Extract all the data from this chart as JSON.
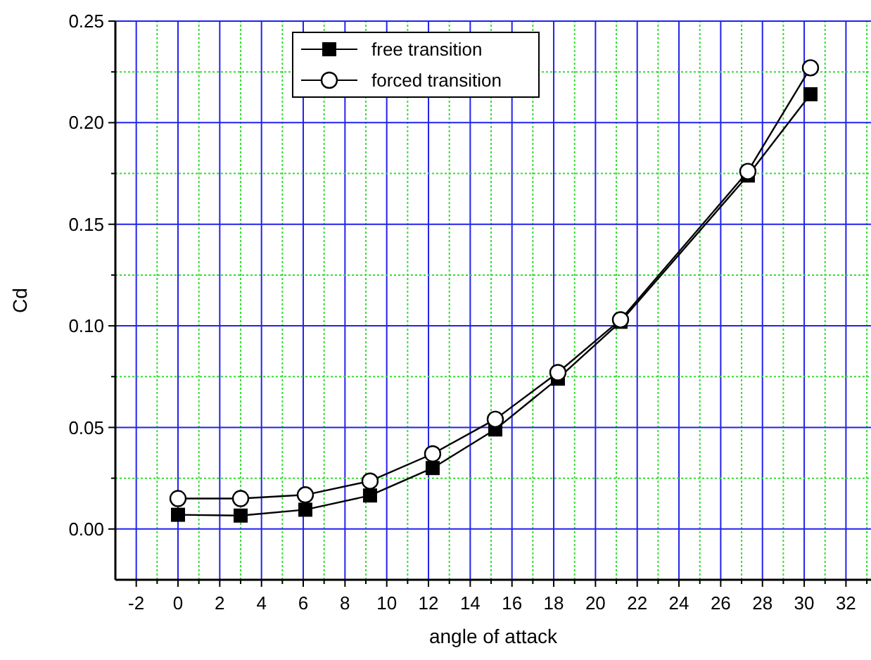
{
  "chart_data": {
    "type": "line",
    "xlabel": "angle of attack",
    "ylabel": "Cd",
    "xlim": [
      -3,
      33.2
    ],
    "ylim": [
      -0.025,
      0.25
    ],
    "xticks": [
      -2,
      {
        "value": -1,
        "label": null
      },
      0,
      {
        "value": 1,
        "label": null
      },
      2,
      {
        "value": 3,
        "label": null
      },
      4,
      {
        "value": 5,
        "label": null
      },
      6,
      {
        "value": 7,
        "label": null
      },
      8,
      {
        "value": 9,
        "label": null
      },
      10,
      {
        "value": 11,
        "label": null
      },
      12,
      {
        "value": 13,
        "label": null
      },
      14,
      {
        "value": 15,
        "label": null
      },
      16,
      {
        "value": 17,
        "label": null
      },
      18,
      {
        "value": 19,
        "label": null
      },
      20,
      {
        "value": 21,
        "label": null
      },
      22,
      {
        "value": 23,
        "label": null
      },
      24,
      {
        "value": 25,
        "label": null
      },
      26,
      {
        "value": 27,
        "label": null
      },
      28,
      {
        "value": 29,
        "label": null
      },
      30,
      {
        "value": 31,
        "label": null
      },
      32,
      {
        "value": 33,
        "label": null
      }
    ],
    "yticks": [
      {
        "value": 0,
        "label": "0.00"
      },
      {
        "value": 0.025,
        "label": null
      },
      {
        "value": 0.05,
        "label": "0.05"
      },
      {
        "value": 0.075,
        "label": null
      },
      {
        "value": 0.1,
        "label": "0.10"
      },
      {
        "value": 0.125,
        "label": null
      },
      {
        "value": 0.15,
        "label": "0.15"
      },
      {
        "value": 0.175,
        "label": null
      },
      {
        "value": 0.2,
        "label": "0.20"
      },
      {
        "value": 0.225,
        "label": null
      },
      {
        "value": 0.25,
        "label": "0.25"
      }
    ],
    "grid": true,
    "legend": "top",
    "line_style": "solid",
    "series": [
      {
        "name": "free transition",
        "color": "#000000",
        "marker": "square",
        "x": [
          0,
          3,
          6.1,
          9.2,
          12.2,
          15.2,
          18.2,
          21.2,
          27.3,
          30.3
        ],
        "values": [
          0.007,
          0.0066,
          0.0095,
          0.0165,
          0.03,
          0.049,
          0.074,
          0.102,
          0.174,
          0.214
        ]
      },
      {
        "name": "forced transition",
        "color": "#000000",
        "marker": "circle",
        "x": [
          0,
          3,
          6.1,
          9.2,
          12.2,
          15.2,
          18.2,
          21.2,
          27.3,
          30.3
        ],
        "values": [
          0.015,
          0.015,
          0.0168,
          0.0236,
          0.037,
          0.054,
          0.077,
          0.103,
          0.176,
          0.227
        ]
      }
    ]
  }
}
